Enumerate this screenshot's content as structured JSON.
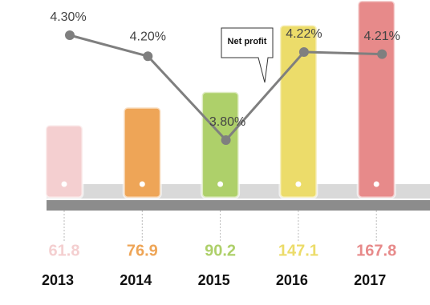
{
  "chart_data": {
    "type": "bar",
    "categories": [
      "2013",
      "2014",
      "2015",
      "2016",
      "2017"
    ],
    "values": [
      61.8,
      76.9,
      90.2,
      147.1,
      167.8
    ],
    "colors": [
      "#f4cfd0",
      "#eea557",
      "#aed06a",
      "#ecdc6a",
      "#e78a8a"
    ],
    "line": {
      "name": "Net profit",
      "color": "#7f7f7f",
      "values": [
        4.3,
        4.2,
        3.8,
        4.22,
        4.21
      ],
      "value_labels": [
        "4.30%",
        "4.20%",
        "3.80%",
        "4.22%",
        "4.21%"
      ]
    }
  }
}
